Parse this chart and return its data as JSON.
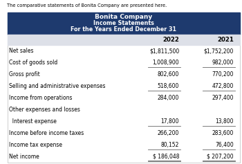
{
  "intro_text": "The comparative statements of Bonita Company are presented here.",
  "header_line1": "Bonita Company",
  "header_line2": "Income Statements",
  "header_line3": "For the Years Ended December 31",
  "header_bg": "#1e3a6e",
  "header_text_color": "#ffffff",
  "col_header_bg": "#dde0e8",
  "col_header_2022": "2022",
  "col_header_2021": "2021",
  "rows": [
    {
      "label": "Net sales",
      "val2022": "$1,811,500",
      "val2021": "$1,752,200",
      "border_below": false,
      "double_below": false
    },
    {
      "label": "Cost of goods sold",
      "val2022": "1,008,900",
      "val2021": "982,000",
      "border_below": true,
      "double_below": false
    },
    {
      "label": "Gross profit",
      "val2022": "802,600",
      "val2021": "770,200",
      "border_below": false,
      "double_below": false
    },
    {
      "label": "Selling and administrative expenses",
      "val2022": "518,600",
      "val2021": "472,800",
      "border_below": true,
      "double_below": false
    },
    {
      "label": "Income from operations",
      "val2022": "284,000",
      "val2021": "297,400",
      "border_below": false,
      "double_below": false
    },
    {
      "label": "Other expenses and losses",
      "val2022": "",
      "val2021": "",
      "border_below": false,
      "double_below": false
    },
    {
      "label": "  Interest expense",
      "val2022": "17,800",
      "val2021": "13,800",
      "border_below": true,
      "double_below": false
    },
    {
      "label": "Income before income taxes",
      "val2022": "266,200",
      "val2021": "283,600",
      "border_below": false,
      "double_below": false
    },
    {
      "label": "Income tax expense",
      "val2022": "80,152",
      "val2021": "76,400",
      "border_below": true,
      "double_below": false
    },
    {
      "label": "Net income",
      "val2022": "$ 186,048",
      "val2021": "$ 207,200",
      "border_below": false,
      "double_below": true
    }
  ],
  "text_color": "#000000",
  "border_color": "#1e3a6e",
  "line_color": "#666666",
  "intro_fontsize": 4.8,
  "header_fontsize1": 6.5,
  "header_fontsize2": 5.8,
  "col_header_fontsize": 6.2,
  "row_fontsize": 5.5
}
